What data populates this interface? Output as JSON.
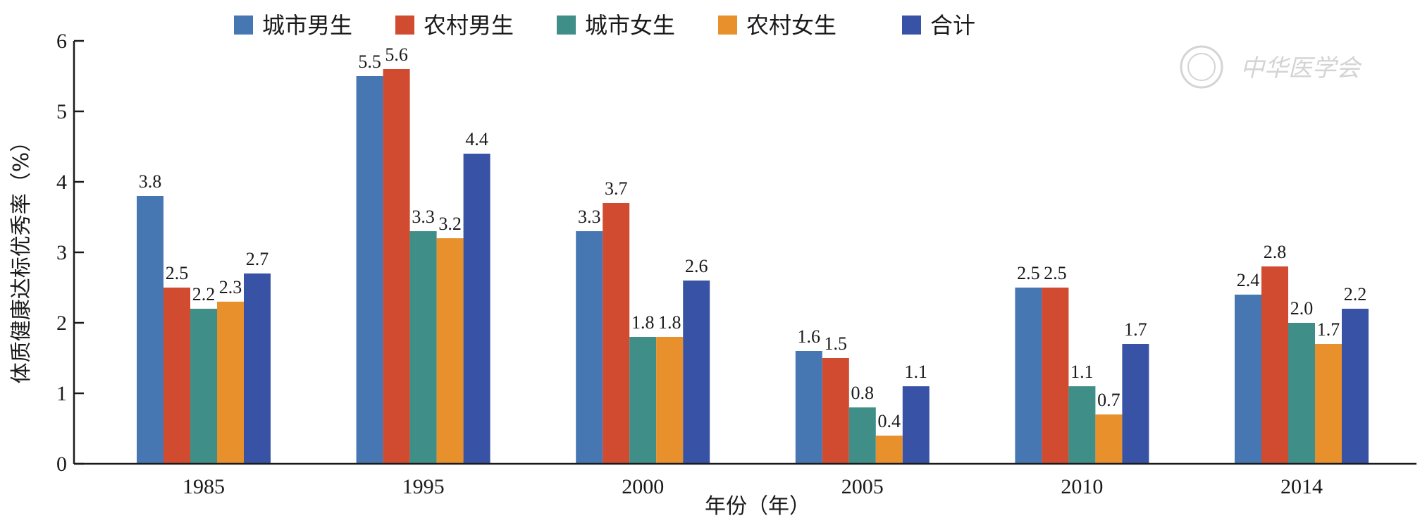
{
  "chart_data": {
    "type": "bar",
    "categories": [
      "1985",
      "1995",
      "2000",
      "2005",
      "2010",
      "2014"
    ],
    "series": [
      {
        "name": "城市男生",
        "color": "#4677b3",
        "values": [
          3.8,
          5.5,
          3.3,
          1.6,
          2.5,
          2.4
        ]
      },
      {
        "name": "农村男生",
        "color": "#d04b30",
        "values": [
          2.5,
          5.6,
          3.7,
          1.5,
          2.5,
          2.8
        ]
      },
      {
        "name": "城市女生",
        "color": "#3f8e88",
        "values": [
          2.2,
          3.3,
          1.8,
          0.8,
          1.1,
          2.0
        ]
      },
      {
        "name": "农村女生",
        "color": "#e8902b",
        "values": [
          2.3,
          3.2,
          1.8,
          0.4,
          0.7,
          1.7
        ]
      },
      {
        "name": "合计",
        "color": "#3853a5",
        "values": [
          2.7,
          4.4,
          2.6,
          1.1,
          1.7,
          2.2
        ]
      }
    ],
    "value_labels": [
      [
        "3.8",
        "5.5",
        "3.3",
        "1.6",
        "2.5",
        "2.4"
      ],
      [
        "2.5",
        "5.6",
        "3.7",
        "1.5",
        "2.5",
        "2.8"
      ],
      [
        "2.2",
        "3.3",
        "1.8",
        "0.8",
        "1.1",
        "2.0"
      ],
      [
        "2.3",
        "3.2",
        "1.8",
        "0.4",
        "0.7",
        "1.7"
      ],
      [
        "2.7",
        "4.4",
        "2.6",
        "1.1",
        "1.7",
        "2.2"
      ]
    ],
    "xlabel": "年份（年）",
    "ylabel": "体质健康达标优秀率（%）",
    "ylim": [
      0,
      6
    ],
    "yticks": [
      "0",
      "1",
      "2",
      "3",
      "4",
      "5",
      "6"
    ],
    "legend_position": "top",
    "grid": false,
    "watermark": "中华医学会"
  }
}
